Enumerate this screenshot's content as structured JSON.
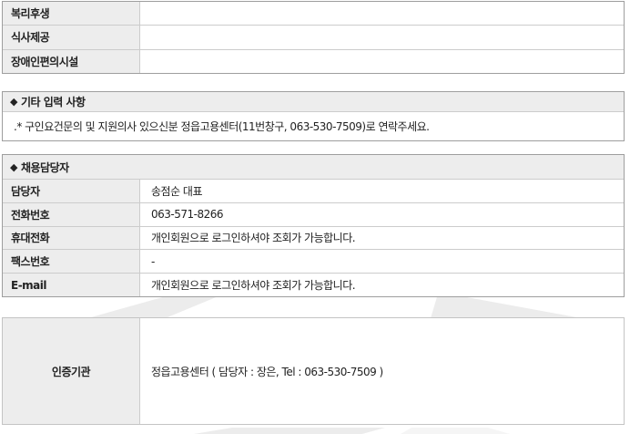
{
  "colors": {
    "label_bg": "#ededed",
    "border_outer": "#9e9e9e",
    "border_inner": "#cccccc",
    "border_light": "#c4c4c4",
    "text": "#222222",
    "watermark": "#ececec"
  },
  "benefits_table": {
    "rows": [
      {
        "label": "복리후생",
        "value": ""
      },
      {
        "label": "식사제공",
        "value": ""
      },
      {
        "label": "장애인편의시설",
        "value": ""
      }
    ]
  },
  "other_info": {
    "bullet": "◆",
    "title": "기타 입력 사항",
    "content": ".* 구인요건문의 및 지원의사 있으신분 정읍고용센터(11번창구, 063-530-7509)로 연락주세요."
  },
  "recruiter": {
    "bullet": "◆",
    "title": "채용담당자",
    "rows": [
      {
        "label": "담당자",
        "value": "송점순 대표"
      },
      {
        "label": "전화번호",
        "value": "063-571-8266"
      },
      {
        "label": "휴대전화",
        "value": "개인회원으로 로그인하셔야 조회가 가능합니다."
      },
      {
        "label": "팩스번호",
        "value": "-"
      },
      {
        "label": "E-mail",
        "value": "개인회원으로 로그인하셔야 조회가 가능합니다."
      }
    ]
  },
  "certification": {
    "label": "인증기관",
    "value": "정읍고용센터 ( 담당자 : 장은, Tel : 063-530-7509 )"
  }
}
